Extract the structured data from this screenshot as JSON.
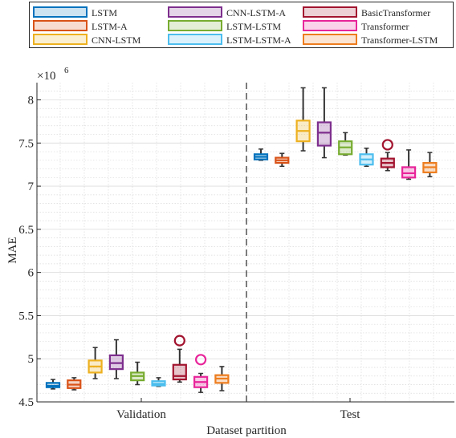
{
  "chart_data": {
    "type": "boxplot",
    "categories": [
      "Validation",
      "Test"
    ],
    "xlabel": "Dataset partition",
    "ylabel": "MAE",
    "y_exponent_label": "×10",
    "y_exponent_power": "6",
    "ylim": [
      4.5,
      8.2
    ],
    "yticks": [
      4.5,
      5,
      5.5,
      6,
      6.5,
      7,
      7.5,
      8
    ],
    "ytick_labels": [
      "4.5",
      "5",
      "5.5",
      "6",
      "6.5",
      "7",
      "7.5",
      "8"
    ],
    "grid": true,
    "legend_position": "top",
    "series": [
      {
        "name": "LSTM",
        "color": "#0072BD",
        "boxes": [
          {
            "whisker_low": 4.65,
            "q1": 4.67,
            "median": 4.685,
            "q3": 4.72,
            "whisker_high": 4.76,
            "outliers": []
          },
          {
            "whisker_low": 7.3,
            "q1": 7.31,
            "median": 7.34,
            "q3": 7.37,
            "whisker_high": 7.43,
            "outliers": []
          }
        ]
      },
      {
        "name": "LSTM-A",
        "color": "#D95319",
        "boxes": [
          {
            "whisker_low": 4.64,
            "q1": 4.66,
            "median": 4.7,
            "q3": 4.75,
            "whisker_high": 4.78,
            "outliers": []
          },
          {
            "whisker_low": 7.23,
            "q1": 7.27,
            "median": 7.3,
            "q3": 7.33,
            "whisker_high": 7.38,
            "outliers": []
          }
        ]
      },
      {
        "name": "CNN-LSTM",
        "color": "#EDB120",
        "boxes": [
          {
            "whisker_low": 4.77,
            "q1": 4.84,
            "median": 4.91,
            "q3": 4.98,
            "whisker_high": 5.13,
            "outliers": []
          },
          {
            "whisker_low": 7.41,
            "q1": 7.52,
            "median": 7.64,
            "q3": 7.76,
            "whisker_high": 8.14,
            "outliers": []
          }
        ]
      },
      {
        "name": "CNN-LSTM-A",
        "color": "#7E2F8E",
        "boxes": [
          {
            "whisker_low": 4.77,
            "q1": 4.88,
            "median": 4.95,
            "q3": 5.04,
            "whisker_high": 5.22,
            "outliers": []
          },
          {
            "whisker_low": 7.33,
            "q1": 7.47,
            "median": 7.62,
            "q3": 7.74,
            "whisker_high": 8.14,
            "outliers": []
          }
        ]
      },
      {
        "name": "LSTM-LSTM",
        "color": "#77AC30",
        "boxes": [
          {
            "whisker_low": 4.7,
            "q1": 4.75,
            "median": 4.8,
            "q3": 4.84,
            "whisker_high": 4.96,
            "outliers": []
          },
          {
            "whisker_low": 7.36,
            "q1": 7.37,
            "median": 7.45,
            "q3": 7.52,
            "whisker_high": 7.62,
            "outliers": []
          }
        ]
      },
      {
        "name": "LSTM-LSTM-A",
        "color": "#4DBEEE",
        "boxes": [
          {
            "whisker_low": 4.68,
            "q1": 4.69,
            "median": 4.71,
            "q3": 4.74,
            "whisker_high": 4.78,
            "outliers": []
          },
          {
            "whisker_low": 7.23,
            "q1": 7.25,
            "median": 7.31,
            "q3": 7.37,
            "whisker_high": 7.44,
            "outliers": []
          }
        ]
      },
      {
        "name": "BasicTransformer",
        "color": "#A2142F",
        "boxes": [
          {
            "whisker_low": 4.73,
            "q1": 4.76,
            "median": 4.8,
            "q3": 4.93,
            "whisker_high": 5.11,
            "outliers": [
              5.21
            ]
          },
          {
            "whisker_low": 7.18,
            "q1": 7.22,
            "median": 7.27,
            "q3": 7.32,
            "whisker_high": 7.39,
            "outliers": [
              7.48
            ]
          }
        ]
      },
      {
        "name": "Transformer",
        "color": "#E8259A",
        "boxes": [
          {
            "whisker_low": 4.61,
            "q1": 4.67,
            "median": 4.73,
            "q3": 4.79,
            "whisker_high": 4.83,
            "outliers": [
              4.99
            ]
          },
          {
            "whisker_low": 7.08,
            "q1": 7.1,
            "median": 7.15,
            "q3": 7.22,
            "whisker_high": 7.42,
            "outliers": []
          }
        ]
      },
      {
        "name": "Transformer-LSTM",
        "color": "#ED7D1E",
        "boxes": [
          {
            "whisker_low": 4.63,
            "q1": 4.72,
            "median": 4.77,
            "q3": 4.81,
            "whisker_high": 4.91,
            "outliers": []
          },
          {
            "whisker_low": 7.11,
            "q1": 7.16,
            "median": 7.22,
            "q3": 7.27,
            "whisker_high": 7.39,
            "outliers": []
          }
        ]
      }
    ]
  }
}
